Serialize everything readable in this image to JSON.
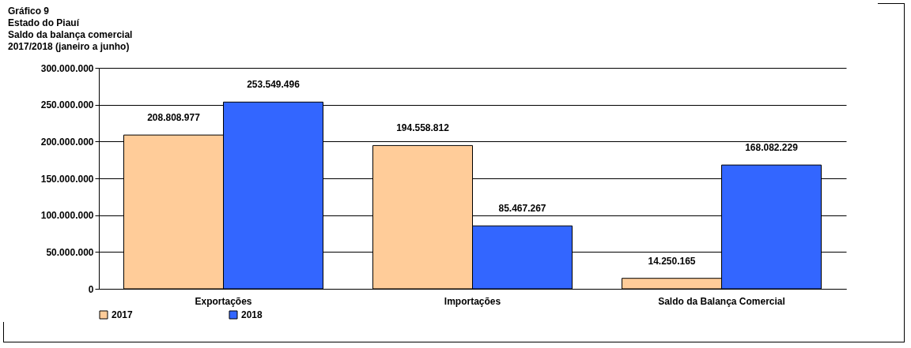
{
  "chart_data": {
    "type": "bar",
    "title": "Gráfico 9",
    "subtitle": "Estado do Piauí\nSaldo da balança comercial\n2017/2018 (janeiro a junho)",
    "categories": [
      "Exportações",
      "Importações",
      "Saldo da Balança Comercial"
    ],
    "series": [
      {
        "name": "2017",
        "color": "#ffcc99",
        "values": [
          208808977,
          194558812,
          14250165
        ],
        "value_labels": [
          "208.808.977",
          "194.558.812",
          "14.250.165"
        ]
      },
      {
        "name": "2018",
        "color": "#3366ff",
        "values": [
          253549496,
          85467267,
          168082229
        ],
        "value_labels": [
          "253.549.496",
          "85.467.267",
          "168.082.229"
        ]
      }
    ],
    "ylim": [
      0,
      300000000
    ],
    "yticks": [
      {
        "value": 0,
        "label": "0"
      },
      {
        "value": 50000000,
        "label": "50.000.000"
      },
      {
        "value": 100000000,
        "label": "100.000.000"
      },
      {
        "value": 150000000,
        "label": "150.000.000"
      },
      {
        "value": 200000000,
        "label": "200.000.000"
      },
      {
        "value": 250000000,
        "label": "250.000.000"
      },
      {
        "value": 300000000,
        "label": "300.000.000"
      }
    ],
    "grid": "y",
    "legend": "bottom"
  }
}
